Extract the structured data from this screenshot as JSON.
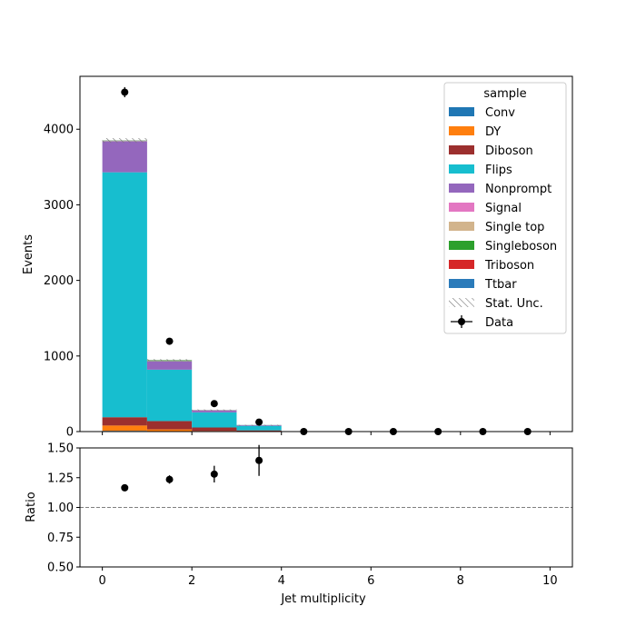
{
  "chart_data": [
    {
      "type": "bar",
      "stacked": true,
      "ylabel": "Events",
      "xlim": [
        -0.5,
        10.5
      ],
      "ylim": [
        0,
        4700
      ],
      "yticks": [
        0,
        1000,
        2000,
        3000,
        4000
      ],
      "bin_edges": [
        0,
        1,
        2,
        3,
        4,
        5,
        6,
        7,
        8,
        9,
        10
      ],
      "legend": {
        "title": "sample",
        "position": "top-right"
      },
      "series": [
        {
          "name": "Conv",
          "color": "#1f77b4",
          "values": [
            10,
            4,
            1,
            1,
            0,
            0,
            0,
            0,
            0,
            0
          ]
        },
        {
          "name": "DY",
          "color": "#ff7f0e",
          "values": [
            70,
            25,
            8,
            3,
            0,
            0,
            0,
            0,
            0,
            0
          ]
        },
        {
          "name": "Diboson",
          "color": "#9c2f2e",
          "values": [
            110,
            110,
            45,
            12,
            0,
            0,
            0,
            0,
            0,
            0
          ]
        },
        {
          "name": "Flips",
          "color": "#17becf",
          "values": [
            3240,
            680,
            200,
            60,
            0,
            0,
            0,
            0,
            0,
            0
          ]
        },
        {
          "name": "Nonprompt",
          "color": "#9467bd",
          "values": [
            410,
            110,
            25,
            8,
            0,
            0,
            0,
            0,
            0,
            0
          ]
        },
        {
          "name": "Signal",
          "color": "#e377c2",
          "values": [
            3,
            3,
            3,
            1,
            0,
            0,
            0,
            0,
            0,
            0
          ]
        },
        {
          "name": "Single top",
          "color": "#d2b48c",
          "values": [
            2,
            1,
            1,
            0,
            0,
            0,
            0,
            0,
            0,
            0
          ]
        },
        {
          "name": "Singleboson",
          "color": "#2ca02c",
          "values": [
            5,
            10,
            2,
            1,
            0,
            0,
            0,
            0,
            0,
            0
          ]
        },
        {
          "name": "Triboson",
          "color": "#d62728",
          "values": [
            1,
            1,
            0,
            0,
            0,
            0,
            0,
            0,
            0,
            0
          ]
        },
        {
          "name": "Ttbar",
          "color": "#2b7bba",
          "values": [
            1,
            1,
            1,
            1,
            0,
            0,
            0,
            0,
            0,
            0
          ]
        }
      ],
      "stat_unc": {
        "name": "Stat. Unc.",
        "relative": [
          0.008,
          0.015,
          0.025,
          0.04,
          0,
          0,
          0,
          0,
          0,
          0
        ]
      },
      "data": {
        "name": "Data",
        "x": [
          0.5,
          1.5,
          2.5,
          3.5,
          4.5,
          5.5,
          6.5,
          7.5,
          8.5,
          9.5
        ],
        "y": [
          4490,
          1195,
          370,
          125,
          0,
          0,
          0,
          0,
          0,
          0
        ],
        "yerr": [
          67,
          35,
          19,
          11,
          0,
          0,
          0,
          0,
          0,
          0
        ]
      }
    },
    {
      "type": "scatter",
      "ylabel": "Ratio",
      "xlabel": "Jet multiplicity",
      "xlim": [
        -0.5,
        10.5
      ],
      "ylim": [
        0.5,
        1.5
      ],
      "xticks": [
        0,
        2,
        4,
        6,
        8,
        10
      ],
      "yticks": [
        "0.50",
        "0.75",
        "1.00",
        "1.25",
        "1.50"
      ],
      "reference_line": 1.0,
      "x": [
        0.5,
        1.5,
        2.5,
        3.5
      ],
      "y": [
        1.165,
        1.235,
        1.28,
        1.395
      ],
      "yerr": [
        0.015,
        0.035,
        0.07,
        0.13
      ]
    }
  ]
}
